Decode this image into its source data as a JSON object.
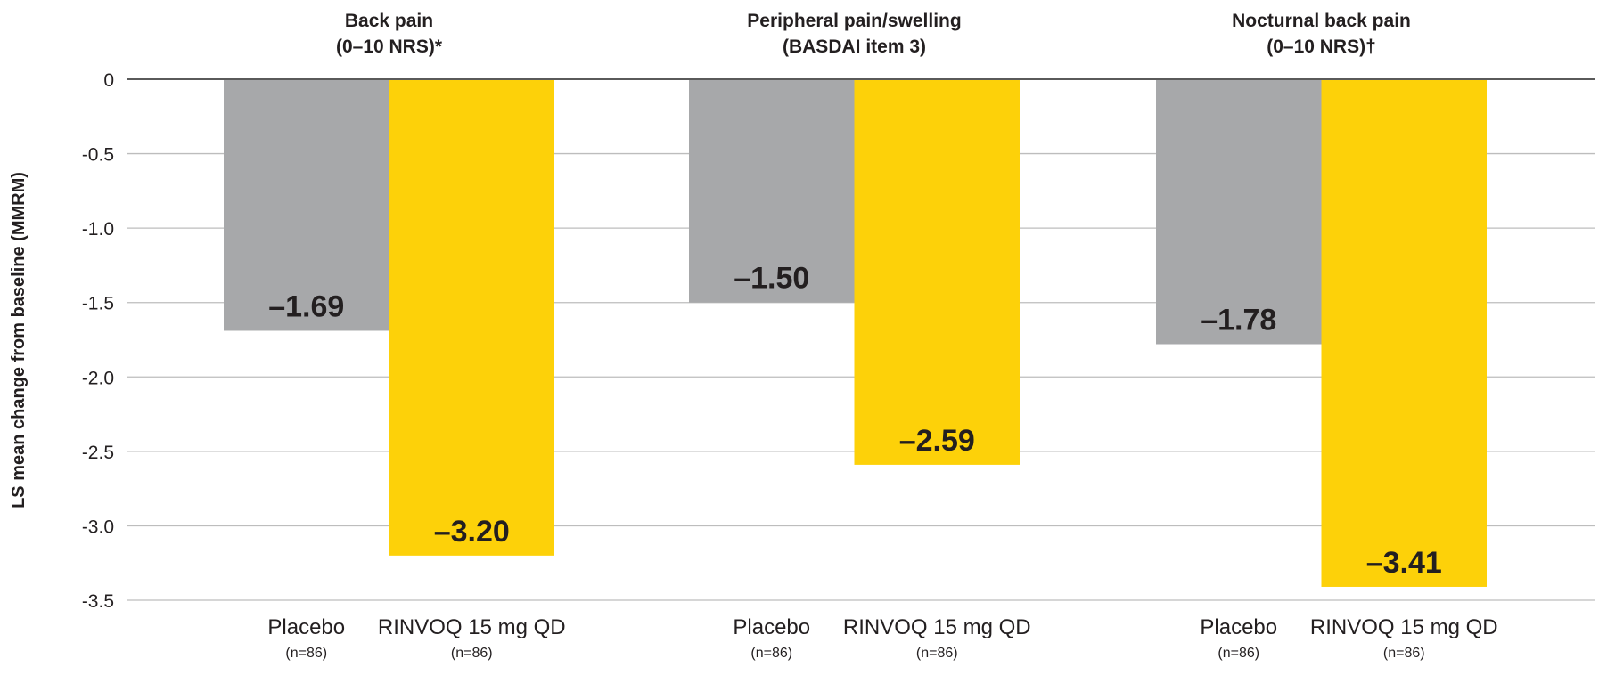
{
  "chart_data": {
    "type": "bar",
    "ylabel": "LS mean change from baseline (MMRM)",
    "ylim": [
      -3.5,
      0
    ],
    "yticks": [
      "0",
      "-0.5",
      "-1.0",
      "-1.5",
      "-2.0",
      "-2.5",
      "-3.0",
      "-3.5"
    ],
    "ytick_values": [
      0,
      -0.5,
      -1.0,
      -1.5,
      -2.0,
      -2.5,
      -3.0,
      -3.5
    ],
    "grid": true,
    "groups": [
      {
        "title_line1": "Back pain",
        "title_line2": "(0–10 NRS)*",
        "bars": [
          {
            "label": "Placebo",
            "n": "(n=86)",
            "value": -1.69,
            "display": "–1.69",
            "color": "#a7a8aa"
          },
          {
            "label": "RINVOQ 15 mg QD",
            "n": "(n=86)",
            "value": -3.2,
            "display": "–3.20",
            "color": "#fdd109"
          }
        ]
      },
      {
        "title_line1": "Peripheral pain/swelling",
        "title_line2": "(BASDAI item 3)",
        "bars": [
          {
            "label": "Placebo",
            "n": "(n=86)",
            "value": -1.5,
            "display": "–1.50",
            "color": "#a7a8aa"
          },
          {
            "label": "RINVOQ 15 mg QD",
            "n": "(n=86)",
            "value": -2.59,
            "display": "–2.59",
            "color": "#fdd109"
          }
        ]
      },
      {
        "title_line1": "Nocturnal back pain",
        "title_line2": "(0–10 NRS)†",
        "bars": [
          {
            "label": "Placebo",
            "n": "(n=86)",
            "value": -1.78,
            "display": "–1.78",
            "color": "#a7a8aa"
          },
          {
            "label": "RINVOQ 15 mg QD",
            "n": "(n=86)",
            "value": -3.41,
            "display": "–3.41",
            "color": "#fdd109"
          }
        ]
      }
    ]
  }
}
